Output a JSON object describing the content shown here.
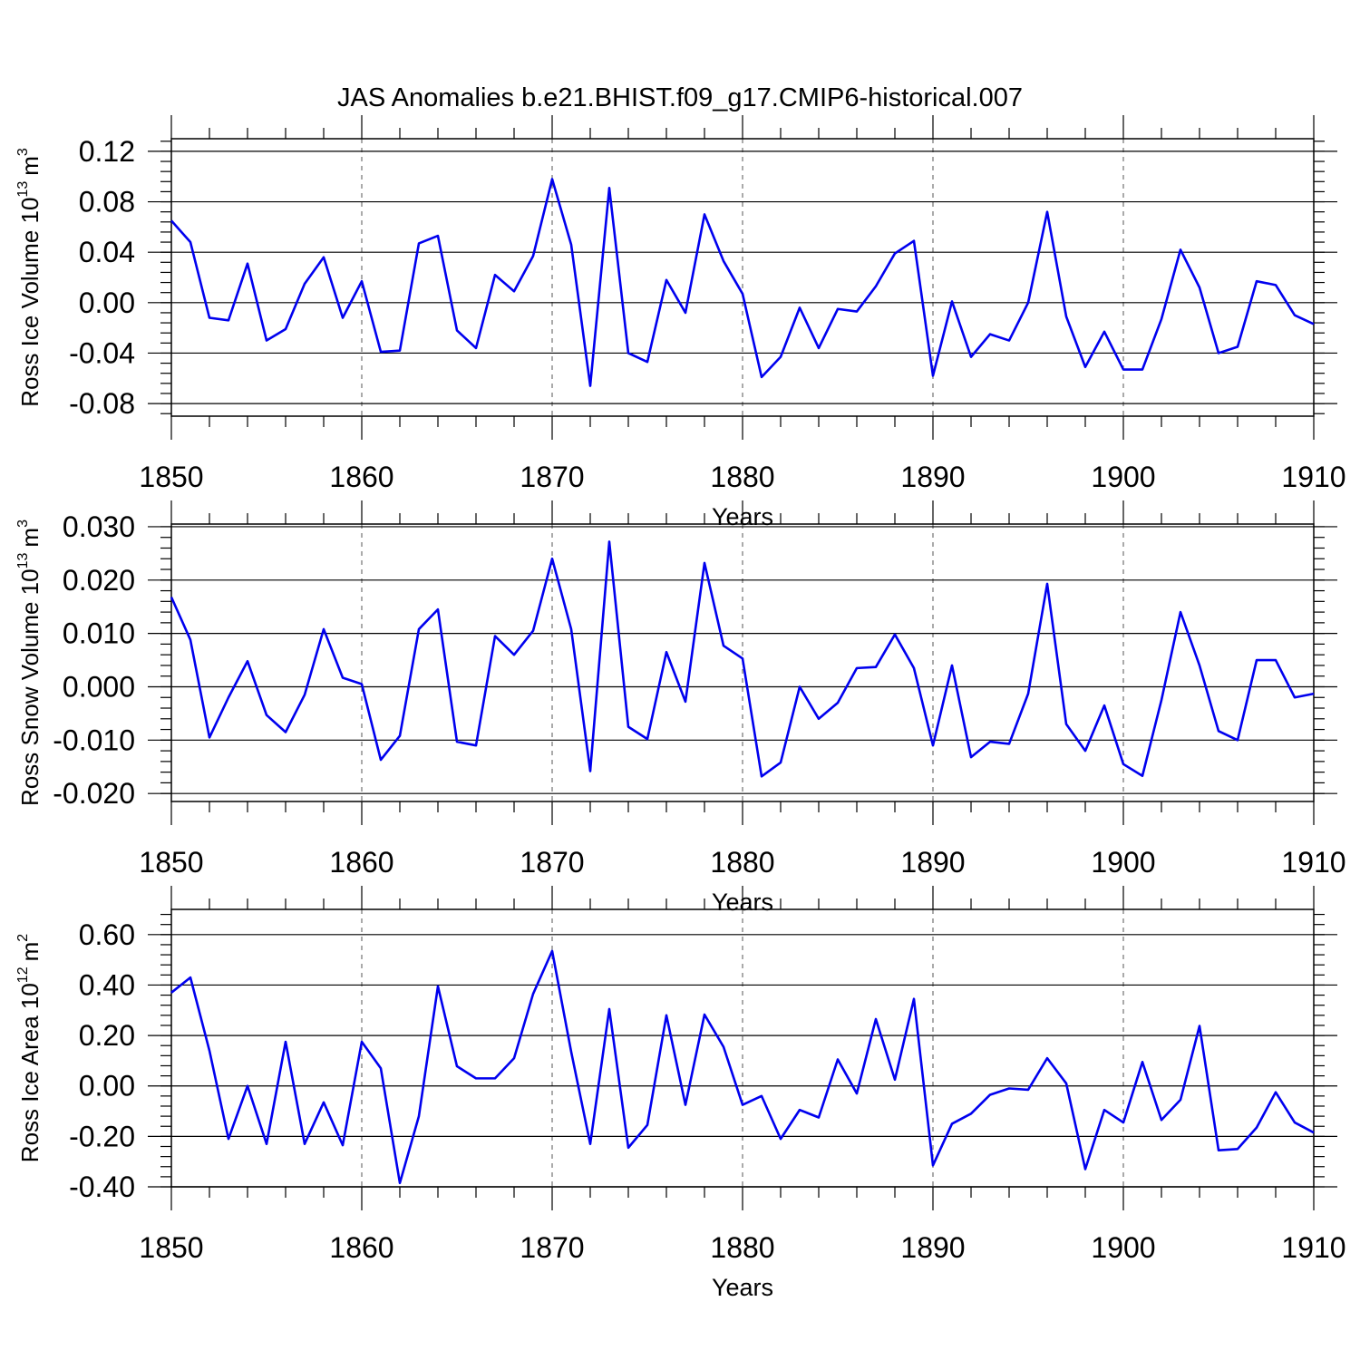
{
  "title": "JAS Anomalies b.e21.BHIST.f09_g17.CMIP6-historical.007",
  "colors": {
    "line": "#0000ee",
    "axis": "#000000",
    "grid": "#555555"
  },
  "chart_data": [
    {
      "type": "line",
      "name": "ross-ice-volume",
      "ylabel": "Ross Ice Volume 10",
      "ylabel_exp": "13",
      "ylabel_unit": "m",
      "ylabel_unit_exp": "3",
      "xlabel": "Years",
      "xlim": [
        1850,
        1910
      ],
      "ylim": [
        -0.09,
        0.13
      ],
      "xticks": [
        "1850",
        "1860",
        "1870",
        "1880",
        "1890",
        "1900",
        "1910"
      ],
      "yticks": [
        "0.12",
        "0.08",
        "0.04",
        "0.00",
        "-0.04",
        "-0.08"
      ],
      "x_start": 1850,
      "values": [
        0.065,
        0.048,
        -0.012,
        -0.014,
        0.031,
        -0.03,
        -0.021,
        0.015,
        0.036,
        -0.012,
        0.017,
        -0.039,
        -0.038,
        0.047,
        0.053,
        -0.022,
        -0.036,
        0.022,
        0.009,
        0.037,
        0.098,
        0.046,
        -0.066,
        0.091,
        -0.04,
        -0.047,
        0.018,
        -0.008,
        0.07,
        0.033,
        0.007,
        -0.059,
        -0.043,
        -0.004,
        -0.036,
        -0.005,
        -0.007,
        0.013,
        0.039,
        0.049,
        -0.058,
        0.001,
        -0.043,
        -0.025,
        -0.03,
        0.0,
        0.072,
        -0.011,
        -0.051,
        -0.023,
        -0.053,
        -0.053,
        -0.013,
        0.042,
        0.012,
        -0.04,
        -0.035,
        0.017,
        0.014,
        -0.01,
        -0.017
      ]
    },
    {
      "type": "line",
      "name": "ross-snow-volume",
      "ylabel": "Ross Snow Volume 10",
      "ylabel_exp": "13",
      "ylabel_unit": "m",
      "ylabel_unit_exp": "3",
      "xlabel": "Years",
      "xlim": [
        1850,
        1910
      ],
      "ylim": [
        -0.0215,
        0.0305
      ],
      "xticks": [
        "1850",
        "1860",
        "1870",
        "1880",
        "1890",
        "1900",
        "1910"
      ],
      "yticks": [
        "0.030",
        "0.020",
        "0.010",
        "0.000",
        "-0.010",
        "-0.020"
      ],
      "x_start": 1850,
      "values": [
        0.0168,
        0.0088,
        -0.0095,
        -0.002,
        0.0048,
        -0.0053,
        -0.0085,
        -0.0015,
        0.0108,
        0.0017,
        0.0005,
        -0.0137,
        -0.0092,
        0.0108,
        0.0145,
        -0.0103,
        -0.011,
        0.0095,
        0.006,
        0.0105,
        0.024,
        0.0108,
        -0.0158,
        0.0272,
        -0.0075,
        -0.0098,
        0.0065,
        -0.0028,
        0.0232,
        0.0077,
        0.0053,
        -0.0168,
        -0.0142,
        0.0,
        -0.006,
        -0.003,
        0.0035,
        0.0037,
        0.0098,
        0.0035,
        -0.011,
        0.004,
        -0.0132,
        -0.0103,
        -0.0107,
        -0.0013,
        0.0193,
        -0.007,
        -0.012,
        -0.0035,
        -0.0145,
        -0.0167,
        -0.0025,
        0.014,
        0.004,
        -0.0083,
        -0.01,
        0.005,
        0.005,
        -0.002,
        -0.0013
      ]
    },
    {
      "type": "line",
      "name": "ross-ice-area",
      "ylabel": "Ross Ice Area 10",
      "ylabel_exp": "12",
      "ylabel_unit": "m",
      "ylabel_unit_exp": "2",
      "xlabel": "Years",
      "xlim": [
        1850,
        1910
      ],
      "ylim": [
        -0.4,
        0.7
      ],
      "xticks": [
        "1850",
        "1860",
        "1870",
        "1880",
        "1890",
        "1900",
        "1910"
      ],
      "yticks": [
        "0.60",
        "0.40",
        "0.20",
        "0.00",
        "-0.20",
        "-0.40"
      ],
      "x_start": 1850,
      "values": [
        0.37,
        0.43,
        0.14,
        -0.21,
        0.0,
        -0.23,
        0.175,
        -0.23,
        -0.065,
        -0.235,
        0.175,
        0.07,
        -0.385,
        -0.12,
        0.395,
        0.078,
        0.03,
        0.03,
        0.11,
        0.365,
        0.535,
        0.135,
        -0.23,
        0.305,
        -0.245,
        -0.155,
        0.28,
        -0.075,
        0.283,
        0.155,
        -0.075,
        -0.04,
        -0.21,
        -0.095,
        -0.125,
        0.105,
        -0.03,
        0.265,
        0.025,
        0.345,
        -0.315,
        -0.15,
        -0.11,
        -0.035,
        -0.01,
        -0.015,
        0.11,
        0.01,
        -0.33,
        -0.095,
        -0.145,
        0.095,
        -0.135,
        -0.055,
        0.238,
        -0.255,
        -0.25,
        -0.165,
        -0.025,
        -0.145,
        -0.185
      ]
    }
  ]
}
